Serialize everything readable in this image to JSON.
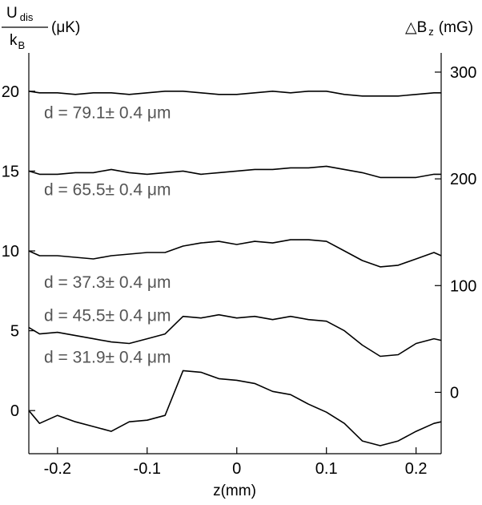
{
  "chart_data": {
    "type": "line",
    "left_axis": {
      "label_numerator_main": "U",
      "label_numerator_sub": "dis",
      "label_denominator_main": "k",
      "label_denominator_sub": "B",
      "label_unit": "(μK)",
      "ticks": [
        0,
        5,
        10,
        15,
        20
      ],
      "tick_labels": [
        "0",
        "5",
        "10",
        "15",
        "20"
      ],
      "ylim": [
        -2.7,
        22.4
      ]
    },
    "right_axis": {
      "label_prefix": "△B",
      "label_sub": "z",
      "label_unit": "(mG)",
      "ticks": [
        0,
        100,
        200,
        300
      ],
      "tick_labels": [
        "0",
        "100",
        "200",
        "300"
      ],
      "ylim": [
        -57.5,
        318
      ]
    },
    "x_axis": {
      "label": "z(mm)",
      "ticks": [
        -0.2,
        -0.1,
        0,
        0.1,
        0.2
      ],
      "tick_labels": [
        "-0.2",
        "-0.1",
        "0",
        "0.1",
        "0.2"
      ],
      "xlim": [
        -0.232,
        0.228
      ]
    },
    "grid": false,
    "series": [
      {
        "annotation": "d = 79.1± 0.4 μm",
        "annotation_at": [
          -0.215,
          18.3
        ],
        "x": [
          -0.232,
          -0.22,
          -0.2,
          -0.18,
          -0.16,
          -0.14,
          -0.12,
          -0.1,
          -0.08,
          -0.06,
          -0.04,
          -0.02,
          0,
          0.02,
          0.04,
          0.06,
          0.08,
          0.1,
          0.12,
          0.14,
          0.16,
          0.18,
          0.2,
          0.22,
          0.228
        ],
        "values": [
          20.0,
          19.9,
          19.9,
          19.8,
          19.9,
          19.9,
          19.8,
          19.9,
          20.0,
          20.0,
          19.9,
          19.8,
          19.8,
          19.9,
          20.0,
          19.9,
          20.0,
          20.0,
          19.8,
          19.7,
          19.7,
          19.7,
          19.8,
          19.9,
          19.9
        ]
      },
      {
        "annotation": "d = 65.5± 0.4 μm",
        "annotation_at": [
          -0.215,
          13.5
        ],
        "x": [
          -0.232,
          -0.22,
          -0.2,
          -0.18,
          -0.16,
          -0.14,
          -0.12,
          -0.1,
          -0.08,
          -0.06,
          -0.04,
          -0.02,
          0,
          0.02,
          0.04,
          0.06,
          0.08,
          0.1,
          0.12,
          0.14,
          0.16,
          0.18,
          0.2,
          0.22,
          0.228
        ],
        "values": [
          15.0,
          14.8,
          14.8,
          14.9,
          14.9,
          15.1,
          14.9,
          14.8,
          14.9,
          15.0,
          14.8,
          14.9,
          15.0,
          15.1,
          15.1,
          15.2,
          15.2,
          15.3,
          15.1,
          14.9,
          14.6,
          14.6,
          14.6,
          14.8,
          14.8
        ]
      },
      {
        "annotation": "d = 45.5± 0.4 μm",
        "annotation_at": [
          -0.215,
          5.6
        ],
        "x": [
          -0.232,
          -0.22,
          -0.2,
          -0.18,
          -0.16,
          -0.14,
          -0.12,
          -0.1,
          -0.08,
          -0.06,
          -0.04,
          -0.02,
          0,
          0.02,
          0.04,
          0.06,
          0.08,
          0.1,
          0.12,
          0.14,
          0.16,
          0.18,
          0.2,
          0.22,
          0.228
        ],
        "values": [
          10.0,
          9.7,
          9.7,
          9.6,
          9.5,
          9.7,
          9.8,
          9.9,
          9.9,
          10.3,
          10.5,
          10.6,
          10.4,
          10.6,
          10.5,
          10.7,
          10.7,
          10.6,
          10.0,
          9.4,
          9.0,
          9.1,
          9.5,
          9.9,
          9.7
        ]
      },
      {
        "annotation": "d = 37.3± 0.4 μm",
        "annotation_at": [
          -0.215,
          7.7
        ],
        "x": [
          -0.232,
          -0.22,
          -0.2,
          -0.18,
          -0.16,
          -0.14,
          -0.12,
          -0.1,
          -0.08,
          -0.06,
          -0.04,
          -0.02,
          0,
          0.02,
          0.04,
          0.06,
          0.08,
          0.1,
          0.12,
          0.14,
          0.16,
          0.18,
          0.2,
          0.22,
          0.228
        ],
        "values": [
          5.2,
          4.8,
          4.9,
          4.7,
          4.5,
          4.3,
          4.2,
          4.5,
          4.8,
          5.9,
          5.8,
          6.0,
          5.8,
          5.9,
          5.7,
          5.9,
          5.7,
          5.6,
          5.0,
          4.1,
          3.4,
          3.5,
          4.2,
          4.5,
          4.4
        ]
      },
      {
        "annotation": "d = 31.9± 0.4 μm",
        "annotation_at": [
          -0.215,
          3.0
        ],
        "x": [
          -0.232,
          -0.22,
          -0.2,
          -0.18,
          -0.16,
          -0.14,
          -0.12,
          -0.1,
          -0.08,
          -0.06,
          -0.04,
          -0.02,
          0,
          0.02,
          0.04,
          0.06,
          0.08,
          0.1,
          0.12,
          0.14,
          0.16,
          0.18,
          0.2,
          0.22,
          0.228
        ],
        "values": [
          0.0,
          -0.8,
          -0.3,
          -0.7,
          -1.0,
          -1.3,
          -0.7,
          -0.6,
          -0.3,
          2.5,
          2.4,
          2.0,
          1.9,
          1.7,
          1.2,
          1.0,
          0.4,
          -0.1,
          -0.8,
          -1.9,
          -2.2,
          -1.9,
          -1.3,
          -0.8,
          -0.7
        ]
      }
    ]
  }
}
